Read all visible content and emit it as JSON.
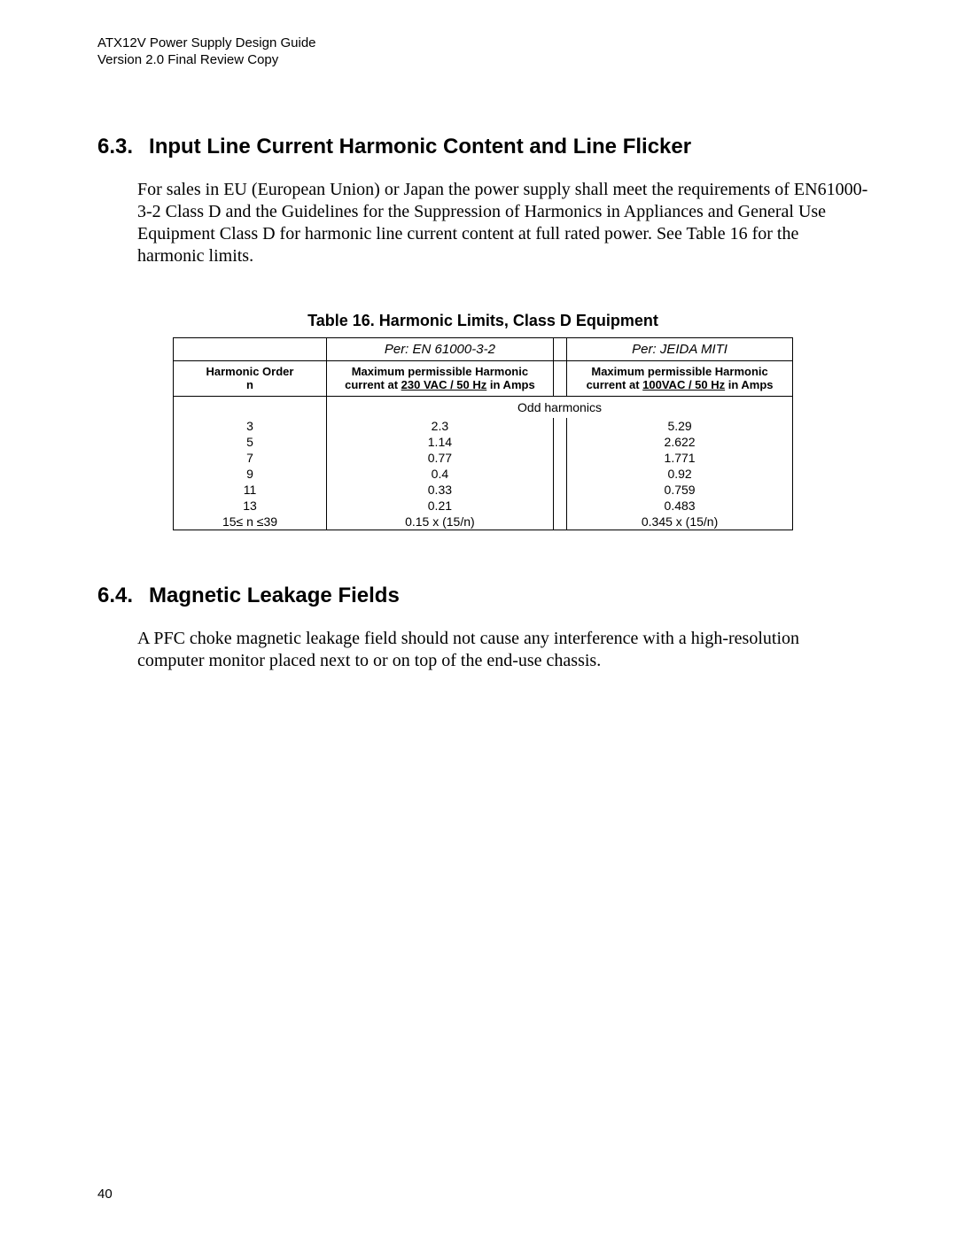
{
  "header": {
    "line1": "ATX12V Power Supply Design Guide",
    "line2": "Version 2.0 Final Review Copy"
  },
  "section63": {
    "number": "6.3.",
    "title": "Input Line Current Harmonic Content and Line Flicker",
    "paragraph": "For sales in EU (European Union) or Japan the power supply shall meet the requirements of EN61000-3-2 Class D and the Guidelines for the Suppression of Harmonics in Appliances and General Use Equipment Class D for harmonic line current content at full rated power. See Table 16 for the harmonic limits."
  },
  "table16": {
    "caption": "Table 16.  Harmonic Limits, Class D Equipment",
    "header_top_en": "Per:  EN 61000-3-2",
    "header_top_jeida": "Per: JEIDA MITI",
    "header_order_l1": "Harmonic Order",
    "header_order_l2": "n",
    "header_en_l1": "Maximum permissible Harmonic",
    "header_en_l2a": "current at ",
    "header_en_l2b": "230 VAC / 50 Hz",
    "header_en_l2c": " in Amps",
    "header_jeida_l1": "Maximum permissible Harmonic",
    "header_jeida_l2a": "current at ",
    "header_jeida_l2b": "100VAC / 50 Hz",
    "header_jeida_l2c": " in Amps",
    "odd_harmonics_label": "Odd harmonics",
    "rows": [
      {
        "order": "3",
        "en": "2.3",
        "jeida": "5.29"
      },
      {
        "order": "5",
        "en": "1.14",
        "jeida": "2.622"
      },
      {
        "order": "7",
        "en": "0.77",
        "jeida": "1.771"
      },
      {
        "order": "9",
        "en": "0.4",
        "jeida": "0.92"
      },
      {
        "order": "11",
        "en": "0.33",
        "jeida": "0.759"
      },
      {
        "order": "13",
        "en": "0.21",
        "jeida": "0.483"
      },
      {
        "order": "15≤ n ≤39",
        "en": "0.15 x (15/n)",
        "jeida": "0.345 x (15/n)"
      }
    ]
  },
  "section64": {
    "number": "6.4.",
    "title": "Magnetic Leakage Fields",
    "paragraph": "A PFC choke magnetic leakage field should not cause any interference with a high-resolution computer monitor placed next to or on top of the end-use chassis."
  },
  "page_number": "40"
}
